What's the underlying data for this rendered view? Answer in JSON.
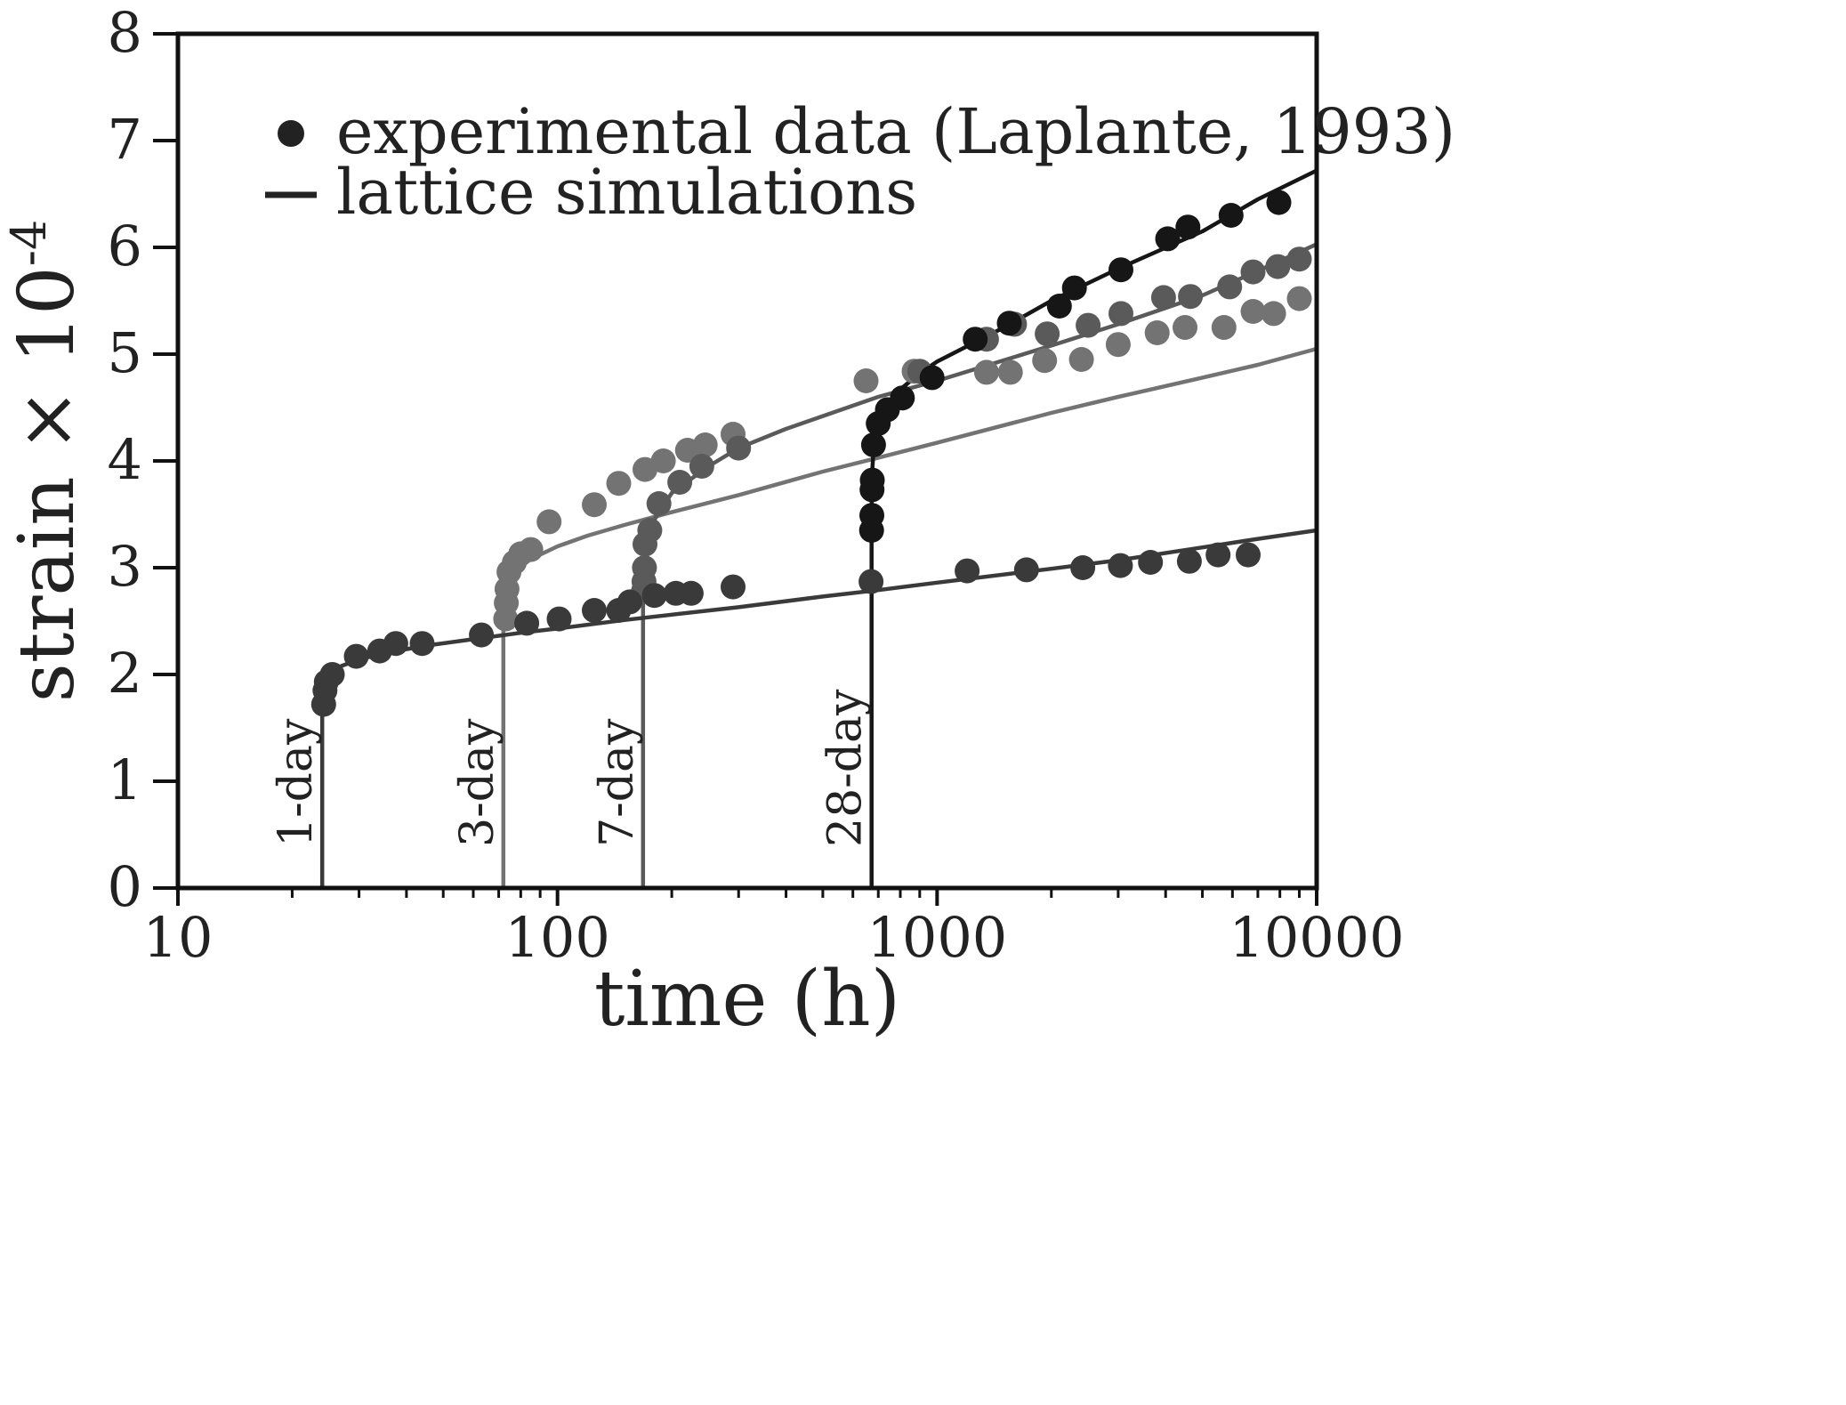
{
  "chart_data": {
    "type": "scatter",
    "xscale": "log",
    "xlim": [
      10,
      10000
    ],
    "ylim": [
      0,
      8
    ],
    "xlabel": "time (h)",
    "ylabel_main": "strain × 10",
    "ylabel_exp": "-4",
    "xticks": [
      "10",
      "100",
      "1000",
      "10000"
    ],
    "yticks": [
      "0",
      "1",
      "2",
      "3",
      "4",
      "5",
      "6",
      "7",
      "8"
    ],
    "legend": {
      "position": "top-left",
      "items": [
        {
          "kind": "marker",
          "label": "experimental data (Laplante, 1993)"
        },
        {
          "kind": "line",
          "label": "lattice simulations"
        }
      ]
    },
    "colors": {
      "axis": "#111111",
      "legend": "#222222",
      "1-day": "#3a3a3a",
      "3-day": "#737373",
      "7-day": "#5a5a5a",
      "28-day": "#161616"
    },
    "series": [
      {
        "name": "1-day",
        "load_age_h": 24,
        "label": "1-day",
        "color_key": "1-day",
        "simulation": [
          [
            24,
            0
          ],
          [
            24,
            1.7
          ],
          [
            24.3,
            1.9
          ],
          [
            25,
            2.0
          ],
          [
            27,
            2.08
          ],
          [
            30,
            2.14
          ],
          [
            35,
            2.2
          ],
          [
            45,
            2.27
          ],
          [
            60,
            2.33
          ],
          [
            80,
            2.39
          ],
          [
            100,
            2.43
          ],
          [
            150,
            2.51
          ],
          [
            200,
            2.56
          ],
          [
            300,
            2.63
          ],
          [
            500,
            2.73
          ],
          [
            700,
            2.79
          ],
          [
            1000,
            2.86
          ],
          [
            2000,
            2.99
          ],
          [
            3000,
            3.07
          ],
          [
            5000,
            3.19
          ],
          [
            7000,
            3.27
          ],
          [
            10000,
            3.35
          ]
        ],
        "experimental": [
          [
            24.2,
            1.72
          ],
          [
            24.4,
            1.85
          ],
          [
            24.6,
            1.93
          ],
          [
            25.5,
            2.0
          ],
          [
            29.5,
            2.17
          ],
          [
            34,
            2.22
          ],
          [
            37.5,
            2.29
          ],
          [
            44,
            2.29
          ],
          [
            63,
            2.37
          ],
          [
            83,
            2.48
          ],
          [
            101,
            2.52
          ],
          [
            125,
            2.6
          ],
          [
            145,
            2.6
          ],
          [
            155,
            2.68
          ],
          [
            180,
            2.74
          ],
          [
            205,
            2.76
          ],
          [
            225,
            2.76
          ],
          [
            290,
            2.82
          ],
          [
            670,
            2.87
          ],
          [
            1200,
            2.97
          ],
          [
            1720,
            2.98
          ],
          [
            2420,
            3.0
          ],
          [
            3040,
            3.02
          ],
          [
            3650,
            3.05
          ],
          [
            4620,
            3.06
          ],
          [
            5500,
            3.12
          ],
          [
            6600,
            3.12
          ]
        ]
      },
      {
        "name": "3-day",
        "load_age_h": 72,
        "label": "3-day",
        "color_key": "3-day",
        "simulation": [
          [
            72,
            0
          ],
          [
            72,
            2.45
          ],
          [
            72.5,
            2.7
          ],
          [
            73.5,
            2.85
          ],
          [
            75,
            2.93
          ],
          [
            78,
            2.99
          ],
          [
            85,
            3.08
          ],
          [
            100,
            3.2
          ],
          [
            120,
            3.3
          ],
          [
            150,
            3.4
          ],
          [
            200,
            3.52
          ],
          [
            300,
            3.68
          ],
          [
            500,
            3.9
          ],
          [
            700,
            4.03
          ],
          [
            1000,
            4.17
          ],
          [
            2000,
            4.45
          ],
          [
            3000,
            4.6
          ],
          [
            5000,
            4.78
          ],
          [
            7000,
            4.9
          ],
          [
            10000,
            5.05
          ]
        ],
        "experimental": [
          [
            73,
            2.52
          ],
          [
            73.3,
            2.67
          ],
          [
            73.6,
            2.8
          ],
          [
            74.5,
            2.96
          ],
          [
            77,
            3.05
          ],
          [
            80,
            3.13
          ],
          [
            85,
            3.17
          ],
          [
            95,
            3.43
          ],
          [
            125,
            3.59
          ],
          [
            145,
            3.79
          ],
          [
            170,
            3.92
          ],
          [
            190,
            4.0
          ],
          [
            220,
            4.1
          ],
          [
            245,
            4.15
          ],
          [
            290,
            4.25
          ],
          [
            650,
            4.75
          ],
          [
            870,
            4.84
          ],
          [
            1350,
            4.83
          ],
          [
            1560,
            4.83
          ],
          [
            1920,
            4.94
          ],
          [
            2400,
            4.95
          ],
          [
            3000,
            5.09
          ],
          [
            3800,
            5.2
          ],
          [
            4500,
            5.25
          ],
          [
            5700,
            5.25
          ],
          [
            6800,
            5.4
          ],
          [
            7700,
            5.38
          ],
          [
            9000,
            5.52
          ]
        ]
      },
      {
        "name": "7-day",
        "load_age_h": 168,
        "label": "7-day",
        "color_key": "7-day",
        "simulation": [
          [
            168,
            0
          ],
          [
            168,
            2.6
          ],
          [
            168.5,
            2.9
          ],
          [
            170,
            3.1
          ],
          [
            173,
            3.28
          ],
          [
            180,
            3.45
          ],
          [
            200,
            3.7
          ],
          [
            250,
            3.95
          ],
          [
            300,
            4.12
          ],
          [
            400,
            4.3
          ],
          [
            500,
            4.42
          ],
          [
            700,
            4.6
          ],
          [
            1000,
            4.75
          ],
          [
            2000,
            5.08
          ],
          [
            3000,
            5.28
          ],
          [
            5000,
            5.55
          ],
          [
            7000,
            5.78
          ],
          [
            10000,
            6.03
          ]
        ],
        "experimental": [
          [
            168.5,
            2.78
          ],
          [
            169,
            2.87
          ],
          [
            169.5,
            3.0
          ],
          [
            170,
            3.22
          ],
          [
            175,
            3.35
          ],
          [
            185,
            3.6
          ],
          [
            210,
            3.8
          ],
          [
            240,
            3.95
          ],
          [
            300,
            4.12
          ],
          [
            900,
            4.84
          ],
          [
            1350,
            5.14
          ],
          [
            1600,
            5.28
          ],
          [
            1950,
            5.19
          ],
          [
            2500,
            5.27
          ],
          [
            3050,
            5.38
          ],
          [
            3950,
            5.53
          ],
          [
            4650,
            5.54
          ],
          [
            5900,
            5.63
          ],
          [
            6800,
            5.77
          ],
          [
            7900,
            5.82
          ],
          [
            9000,
            5.89
          ]
        ]
      },
      {
        "name": "28-day",
        "load_age_h": 672,
        "label": "28-day",
        "color_key": "28-day",
        "simulation": [
          [
            672,
            0
          ],
          [
            672,
            3.5
          ],
          [
            673,
            3.85
          ],
          [
            680,
            4.1
          ],
          [
            700,
            4.35
          ],
          [
            750,
            4.55
          ],
          [
            800,
            4.67
          ],
          [
            900,
            4.82
          ],
          [
            1000,
            4.93
          ],
          [
            1500,
            5.25
          ],
          [
            2000,
            5.5
          ],
          [
            3000,
            5.8
          ],
          [
            5000,
            6.15
          ],
          [
            7000,
            6.45
          ],
          [
            10000,
            6.72
          ]
        ],
        "experimental": [
          [
            672,
            3.35
          ],
          [
            673,
            3.49
          ],
          [
            674,
            3.73
          ],
          [
            675,
            3.82
          ],
          [
            680,
            4.15
          ],
          [
            700,
            4.35
          ],
          [
            740,
            4.48
          ],
          [
            810,
            4.59
          ],
          [
            970,
            4.78
          ],
          [
            1260,
            5.14
          ],
          [
            1550,
            5.29
          ],
          [
            2100,
            5.45
          ],
          [
            2300,
            5.62
          ],
          [
            3050,
            5.79
          ],
          [
            4050,
            6.08
          ],
          [
            4580,
            6.19
          ],
          [
            5950,
            6.3
          ],
          [
            7950,
            6.42
          ]
        ]
      }
    ]
  }
}
